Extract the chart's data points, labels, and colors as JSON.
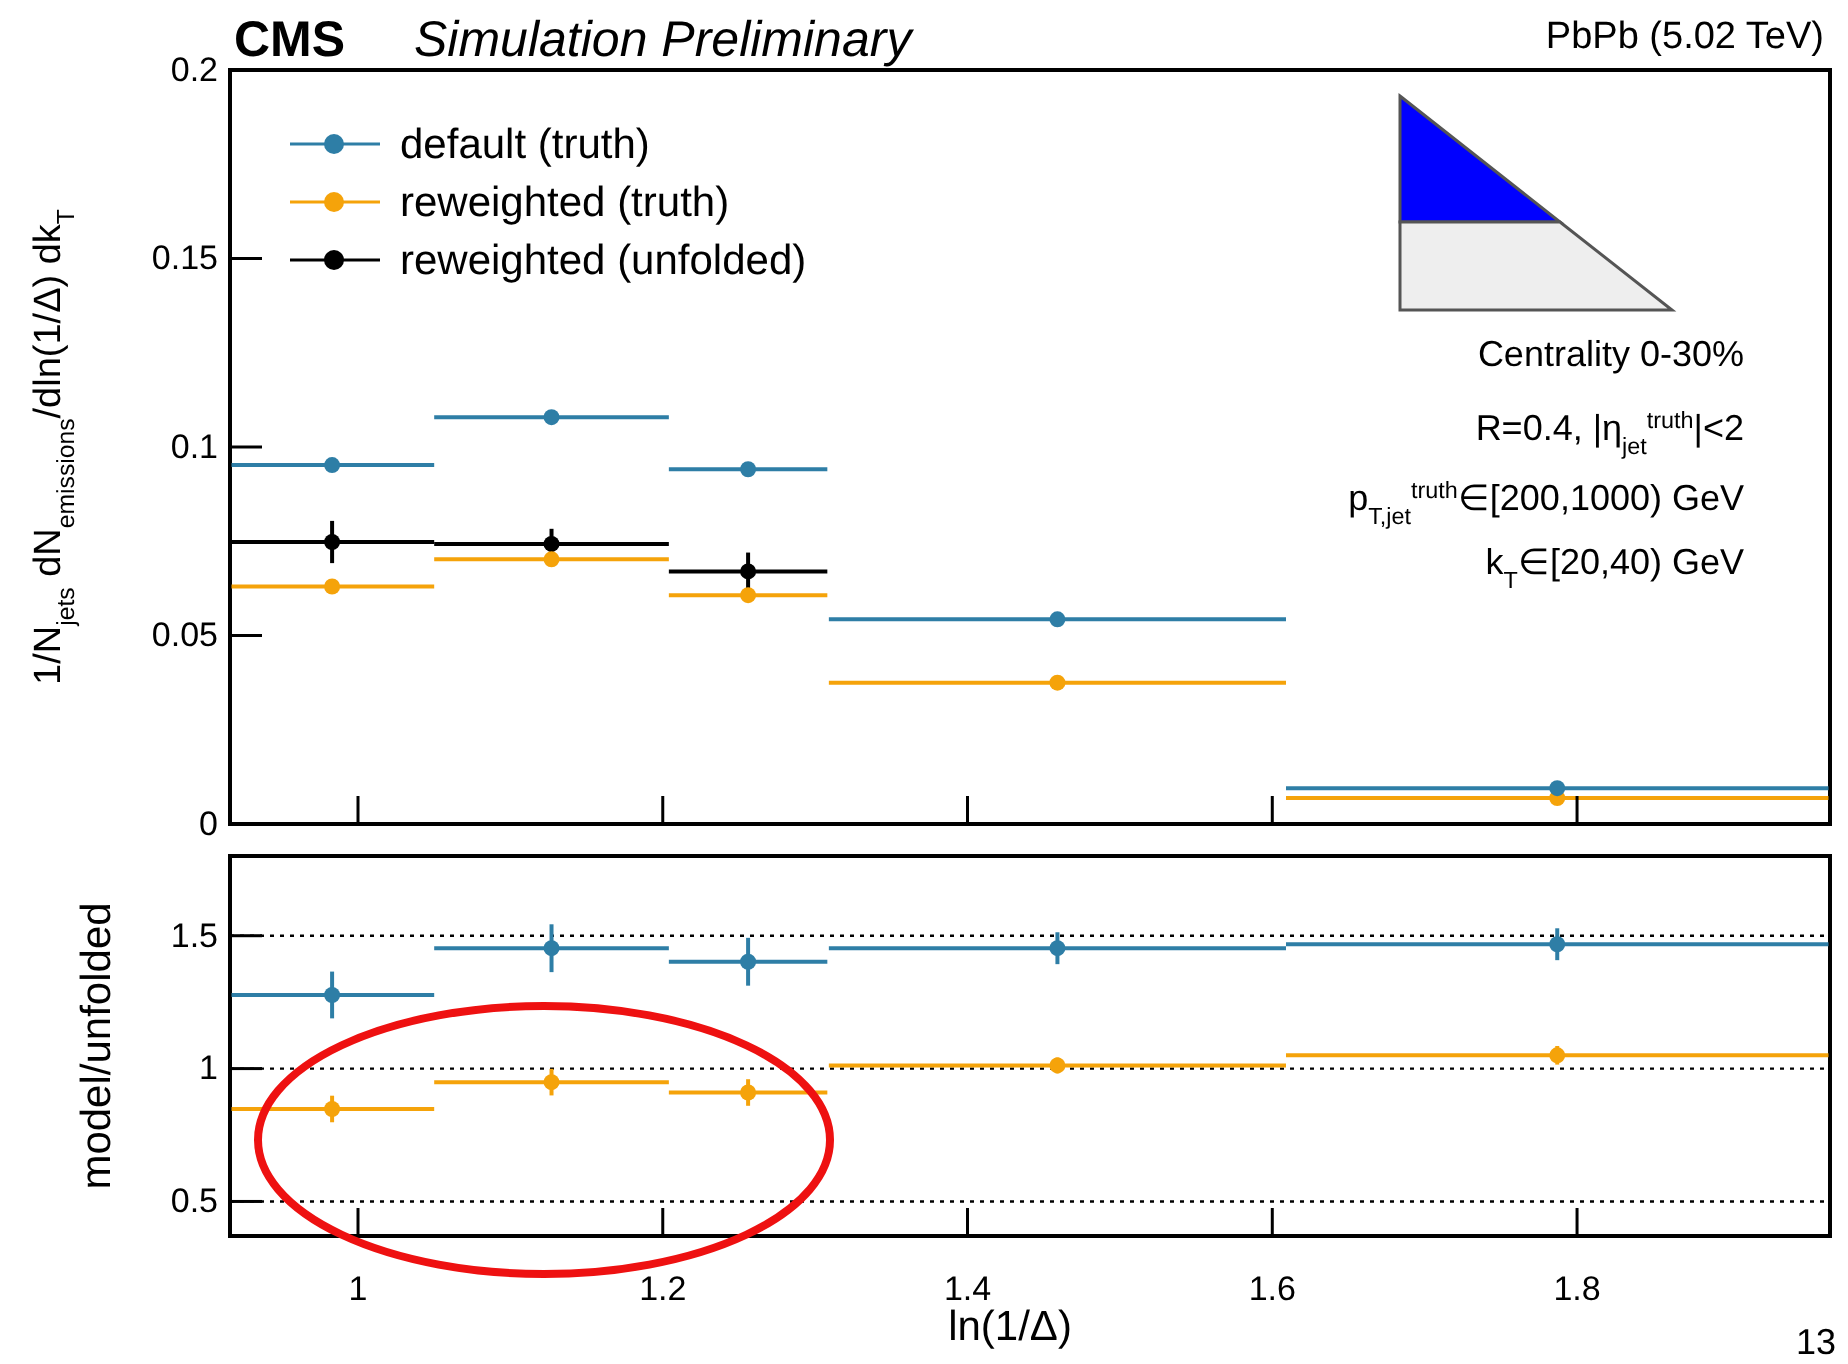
{
  "chart_data": [
    {
      "type": "scatter",
      "title": "CMS",
      "subtitle": "Simulation Preliminary",
      "ylabel": "1/N$_{jets}$ dN$_{emissions}$/dln(1/Δ) dk$_{T}$",
      "annotations": [
        "PbPb (5.02 TeV)",
        "Centrality 0-30%",
        "R=0.4, |η$_{jet}$$^{truth}$|<2",
        "p$_{T,jet}$$^{truth}$∈[200,1000) GeV",
        "k$_{T}$∈[20,40) GeV"
      ],
      "x": [
        0.983,
        1.127,
        1.256,
        1.459,
        1.787
      ],
      "xlim": [
        0.916,
        1.966
      ],
      "xticks": [
        1,
        1.2,
        1.4,
        1.6,
        1.8
      ],
      "ylim": [
        0,
        0.2
      ],
      "yticks": [
        0,
        0.05,
        0.1,
        0.15,
        0.2
      ],
      "tick_labels": "y",
      "legend": "top left",
      "marker": "circle",
      "series": [
        {
          "name": "default (truth)",
          "color": "#2e7ea6",
          "values": [
            0.0952,
            0.1079,
            0.0941,
            0.0543,
            0.0095
          ],
          "xerrors": [
            0.067,
            0.077,
            0.052,
            0.15,
            0.178
          ]
        },
        {
          "name": "reweighted (truth)",
          "color": "#f5a30a",
          "values": [
            0.063,
            0.0702,
            0.0607,
            0.0375,
            0.0069
          ],
          "xerrors": [
            0.067,
            0.077,
            0.052,
            0.15,
            0.178
          ]
        },
        {
          "name": "reweighted (unfolded)",
          "color": "#000000",
          "values": [
            0.0748,
            0.0743,
            0.067,
            null,
            null
          ],
          "xerrors": [
            0.067,
            0.077,
            0.052,
            null,
            null
          ],
          "errors": [
            0.0056,
            0.004,
            0.005,
            null,
            null
          ]
        }
      ]
    },
    {
      "type": "scatter",
      "xlabel": "ln(1/Δ)",
      "ylabel": "model/unfolded",
      "annotations": [
        "13"
      ],
      "x": [
        0.983,
        1.127,
        1.256,
        1.459,
        1.787
      ],
      "xlim": [
        0.916,
        1.966
      ],
      "xticks": [
        1,
        1.2,
        1.4,
        1.6,
        1.8
      ],
      "ylim": [
        0.37,
        1.8
      ],
      "yticks": [
        0.5,
        1,
        1.5
      ],
      "grid": "y",
      "marker": "circle",
      "series": [
        {
          "color": "#2e7ea6",
          "values": [
            1.277,
            1.453,
            1.402,
            1.453,
            1.468
          ],
          "xerrors": [
            0.067,
            0.077,
            0.052,
            0.15,
            0.178
          ],
          "errors": [
            0.088,
            0.09,
            0.09,
            0.06,
            0.06
          ]
        },
        {
          "color": "#f5a30a",
          "values": [
            0.848,
            0.949,
            0.91,
            1.012,
            1.05
          ],
          "xerrors": [
            0.067,
            0.077,
            0.052,
            0.15,
            0.178
          ],
          "errors": [
            0.05,
            0.05,
            0.05,
            0.03,
            0.035
          ]
        }
      ]
    }
  ]
}
